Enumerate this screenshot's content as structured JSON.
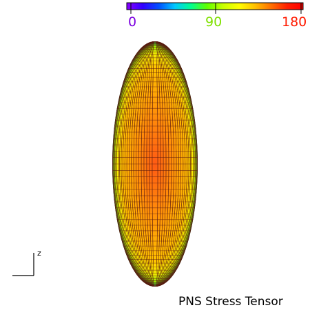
{
  "colorbar": {
    "min_label": "0",
    "mid_label": "90",
    "max_label": "180",
    "min_color": "#7b00e0",
    "mid_color": "#7fe000",
    "max_color": "#ff1a00",
    "stops": [
      "#8a00ff",
      "#3000ff",
      "#0050ff",
      "#00c8ff",
      "#00ff90",
      "#60ff00",
      "#c8ff00",
      "#ffff00",
      "#ffc000",
      "#ff7000",
      "#ff2000",
      "#ff0000"
    ]
  },
  "surface": {
    "fill_color": "#ff5a14",
    "mesh_color": "#5a1a10",
    "edge_stops": [
      "#00e060",
      "#9cff00",
      "#ffff00",
      "#ffc000",
      "#ff5a14"
    ]
  },
  "axes": {
    "z_label": "z"
  },
  "title": "PNS Stress Tensor"
}
